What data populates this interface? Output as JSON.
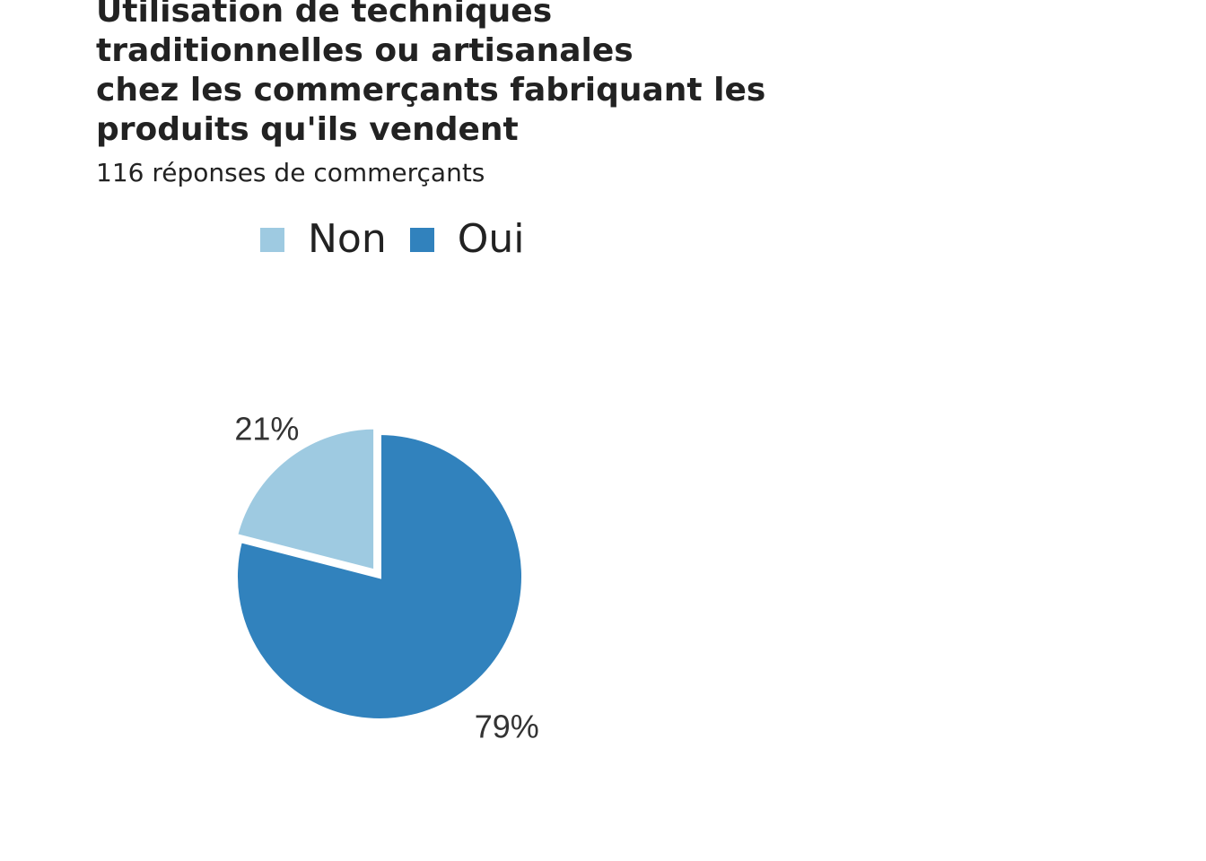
{
  "chart_data": {
    "type": "pie",
    "title": "Utilisation de techniques\ntraditionnelles ou artisanales\nchez les commerçants fabriquant les\nproduits qu'ils vendent",
    "subtitle": "116 réponses de commerçants",
    "legend": "top",
    "slices": [
      {
        "name": "Non",
        "value": 21,
        "label": "21%",
        "color": "#9ecae1"
      },
      {
        "name": "Oui",
        "value": 79,
        "label": "79%",
        "color": "#3182bd"
      }
    ]
  }
}
